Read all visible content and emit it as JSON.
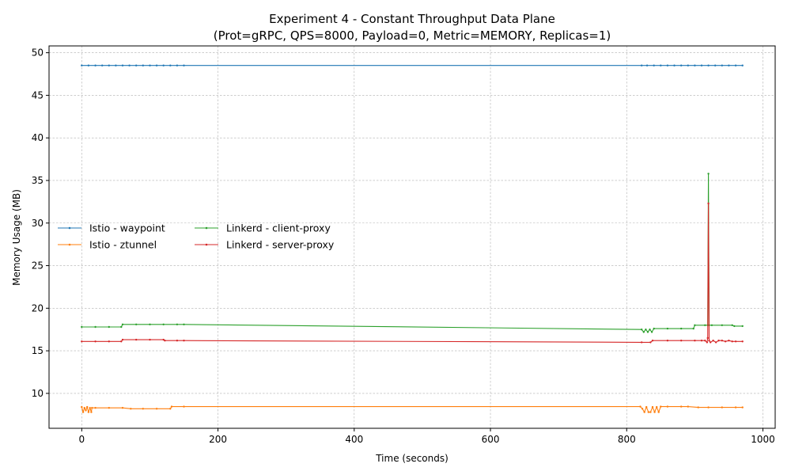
{
  "chart_data": {
    "type": "line",
    "title": "Experiment 4 - Constant Throughput Data Plane",
    "subtitle": "(Prot=gRPC, QPS=8000, Payload=0, Metric=MEMORY, Replicas=1)",
    "xlabel": "Time (seconds)",
    "ylabel": "Memory Usage (MB)",
    "xlim": [
      -48,
      1018
    ],
    "ylim": [
      5.9,
      50.8
    ],
    "xticks": [
      0,
      200,
      400,
      600,
      800,
      1000
    ],
    "yticks": [
      10,
      15,
      20,
      25,
      30,
      35,
      40,
      45,
      50
    ],
    "xtick_labels": [
      "0",
      "200",
      "400",
      "600",
      "800",
      "1000"
    ],
    "ytick_labels": [
      "10",
      "15",
      "20",
      "25",
      "30",
      "35",
      "40",
      "45",
      "50"
    ],
    "grid": true,
    "legend_position": "center-left",
    "series": [
      {
        "name": "Istio - waypoint",
        "color": "#1f77b4",
        "x": [
          0,
          10,
          20,
          30,
          40,
          50,
          60,
          70,
          80,
          90,
          100,
          110,
          120,
          130,
          140,
          150,
          822,
          830,
          840,
          850,
          860,
          870,
          880,
          890,
          900,
          910,
          920,
          930,
          940,
          950,
          960,
          970
        ],
        "y": [
          48.5,
          48.5,
          48.5,
          48.5,
          48.5,
          48.5,
          48.5,
          48.5,
          48.5,
          48.5,
          48.5,
          48.5,
          48.5,
          48.5,
          48.5,
          48.5,
          48.5,
          48.5,
          48.5,
          48.5,
          48.5,
          48.5,
          48.5,
          48.5,
          48.5,
          48.5,
          48.5,
          48.5,
          48.5,
          48.5,
          48.5,
          48.5
        ]
      },
      {
        "name": "Istio - ztunnel",
        "color": "#ff7f0e",
        "x": [
          0,
          2,
          4,
          6,
          8,
          10,
          12,
          14,
          15,
          20,
          40,
          60,
          72,
          90,
          110,
          130,
          132,
          150,
          820,
          823,
          826,
          829,
          832,
          835,
          838,
          841,
          844,
          847,
          850,
          860,
          880,
          890,
          905,
          920,
          940,
          960,
          970
        ],
        "y": [
          8.4,
          7.8,
          8.3,
          8.0,
          8.4,
          7.8,
          8.3,
          7.8,
          8.3,
          8.3,
          8.3,
          8.3,
          8.2,
          8.2,
          8.2,
          8.2,
          8.45,
          8.45,
          8.45,
          8.2,
          7.8,
          8.4,
          7.8,
          7.8,
          8.4,
          7.8,
          8.4,
          7.8,
          8.45,
          8.45,
          8.45,
          8.45,
          8.35,
          8.35,
          8.35,
          8.35,
          8.35
        ]
      },
      {
        "name": "Linkerd - client-proxy",
        "color": "#2ca02c",
        "x": [
          0,
          20,
          40,
          58,
          60,
          80,
          100,
          120,
          140,
          150,
          822,
          825,
          828,
          831,
          834,
          837,
          840,
          860,
          880,
          898,
          900,
          915,
          919,
          920,
          921,
          925,
          940,
          955,
          958,
          970
        ],
        "y": [
          17.8,
          17.8,
          17.8,
          17.8,
          18.1,
          18.1,
          18.1,
          18.1,
          18.1,
          18.1,
          17.5,
          17.2,
          17.5,
          17.2,
          17.5,
          17.2,
          17.6,
          17.6,
          17.6,
          17.6,
          18.0,
          18.0,
          18.0,
          35.8,
          18.0,
          18.0,
          18.0,
          18.0,
          17.9,
          17.9
        ]
      },
      {
        "name": "Linkerd - server-proxy",
        "color": "#d62728",
        "x": [
          0,
          20,
          40,
          58,
          60,
          80,
          100,
          120,
          122,
          140,
          150,
          822,
          835,
          838,
          860,
          880,
          900,
          910,
          915,
          918,
          919,
          920,
          921,
          923,
          927,
          931,
          935,
          940,
          945,
          950,
          955,
          960,
          970
        ],
        "y": [
          16.1,
          16.1,
          16.1,
          16.1,
          16.3,
          16.3,
          16.3,
          16.3,
          16.2,
          16.2,
          16.2,
          16.0,
          16.0,
          16.2,
          16.2,
          16.2,
          16.2,
          16.2,
          16.2,
          16.0,
          16.5,
          32.3,
          16.2,
          16.0,
          16.2,
          16.0,
          16.2,
          16.2,
          16.1,
          16.2,
          16.1,
          16.1,
          16.1
        ]
      }
    ]
  }
}
